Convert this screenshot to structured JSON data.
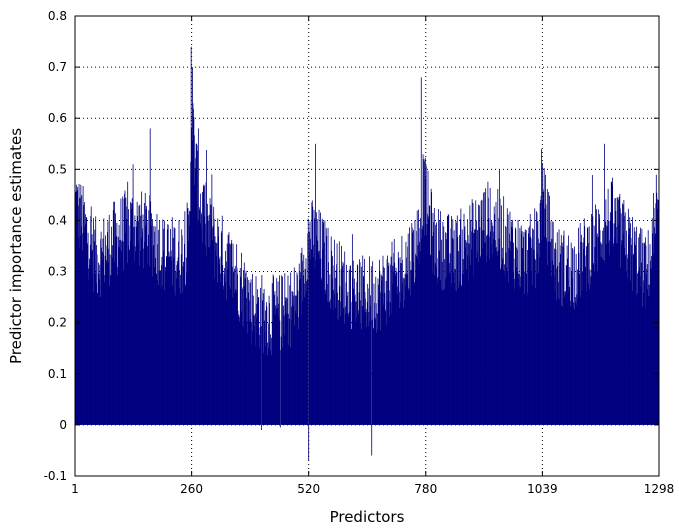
{
  "chart_data": {
    "type": "bar",
    "title": "",
    "xlabel": "Predictors",
    "ylabel": "Predictor importance estimates",
    "xlim": [
      1,
      1298
    ],
    "ylim": [
      -0.1,
      0.8
    ],
    "xticks": [
      1,
      260,
      520,
      780,
      1039,
      1298
    ],
    "xtick_labels": [
      "1",
      "260",
      "520",
      "780",
      "1039",
      "1298"
    ],
    "yticks": [
      -0.1,
      0,
      0.1,
      0.2,
      0.3,
      0.4,
      0.5,
      0.6,
      0.7,
      0.8
    ],
    "ytick_labels": [
      "-0.1",
      "0",
      "0.1",
      "0.2",
      "0.3",
      "0.4",
      "0.5",
      "0.6",
      "0.7",
      "0.8"
    ],
    "grid": true,
    "bar_color": "#000080",
    "series": [
      {
        "x": [
          1,
          50,
          100,
          130,
          165,
          180,
          200,
          240,
          255,
          260,
          270,
          280,
          300,
          330,
          360,
          395,
          430,
          470,
          500,
          520,
          540,
          570,
          600,
          640,
          680,
          720,
          760,
          775,
          800,
          840,
          880,
          920,
          960,
          1000,
          1030,
          1039,
          1070,
          1110,
          1150,
          1190,
          1230,
          1270,
          1298
        ],
        "values": [
          0.44,
          0.33,
          0.38,
          0.4,
          0.38,
          0.37,
          0.34,
          0.34,
          0.38,
          0.62,
          0.5,
          0.44,
          0.38,
          0.34,
          0.3,
          0.24,
          0.22,
          0.23,
          0.26,
          0.38,
          0.36,
          0.31,
          0.28,
          0.26,
          0.27,
          0.3,
          0.36,
          0.47,
          0.36,
          0.34,
          0.37,
          0.41,
          0.37,
          0.33,
          0.36,
          0.45,
          0.32,
          0.31,
          0.36,
          0.41,
          0.36,
          0.3,
          0.41
        ]
      }
    ],
    "peaks": [
      {
        "x": 4,
        "value": 0.47
      },
      {
        "x": 130,
        "value": 0.51
      },
      {
        "x": 168,
        "value": 0.58
      },
      {
        "x": 259,
        "value": 0.74
      },
      {
        "x": 262,
        "value": 0.7
      },
      {
        "x": 275,
        "value": 0.58
      },
      {
        "x": 305,
        "value": 0.49
      },
      {
        "x": 535,
        "value": 0.55
      },
      {
        "x": 770,
        "value": 0.68
      },
      {
        "x": 776,
        "value": 0.52
      },
      {
        "x": 1037,
        "value": 0.54
      },
      {
        "x": 1177,
        "value": 0.55
      },
      {
        "x": 1298,
        "value": 0.49
      }
    ],
    "negatives": [
      {
        "x": 415,
        "value": -0.01
      },
      {
        "x": 457,
        "value": -0.005
      },
      {
        "x": 520,
        "value": -0.07
      },
      {
        "x": 660,
        "value": -0.06
      }
    ]
  }
}
